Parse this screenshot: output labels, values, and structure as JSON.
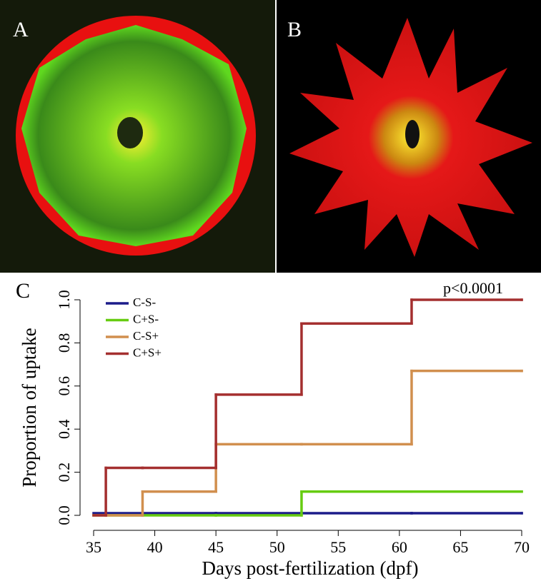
{
  "panels": {
    "a": "A",
    "b": "B",
    "c": "C"
  },
  "chart_data": {
    "type": "step",
    "annotation": "p<0.0001",
    "x_label": "Days post-fertilization (dpf)",
    "y_label": "Proportion of uptake",
    "x": [
      35,
      36,
      39,
      45,
      52,
      61,
      70
    ],
    "series": [
      {
        "name": "C-S-",
        "color": "#1c1c8a",
        "values": [
          0.01,
          0.01,
          0.01,
          0.01,
          0.01,
          0.01,
          0.01
        ]
      },
      {
        "name": "C+S-",
        "color": "#66cc11",
        "values": [
          0,
          0,
          0,
          0,
          0.11,
          0.11,
          0.11
        ]
      },
      {
        "name": "C-S+",
        "color": "#d18f4e",
        "values": [
          0,
          0,
          0.11,
          0.33,
          0.33,
          0.67,
          0.67
        ]
      },
      {
        "name": "C+S+",
        "color": "#a42f2f",
        "values": [
          0,
          0.22,
          0.22,
          0.56,
          0.89,
          1.0,
          1.0
        ]
      }
    ],
    "xlim": [
      35,
      70
    ],
    "xticks": [
      35,
      40,
      45,
      50,
      55,
      60,
      65,
      70
    ],
    "ylim": [
      0,
      1
    ],
    "yticks": [
      {
        "value": 0,
        "label": "0.0"
      },
      0.2,
      0.4,
      0.6,
      0.8,
      {
        "value": 1,
        "label": "1.0"
      }
    ],
    "legend": "top-left"
  }
}
